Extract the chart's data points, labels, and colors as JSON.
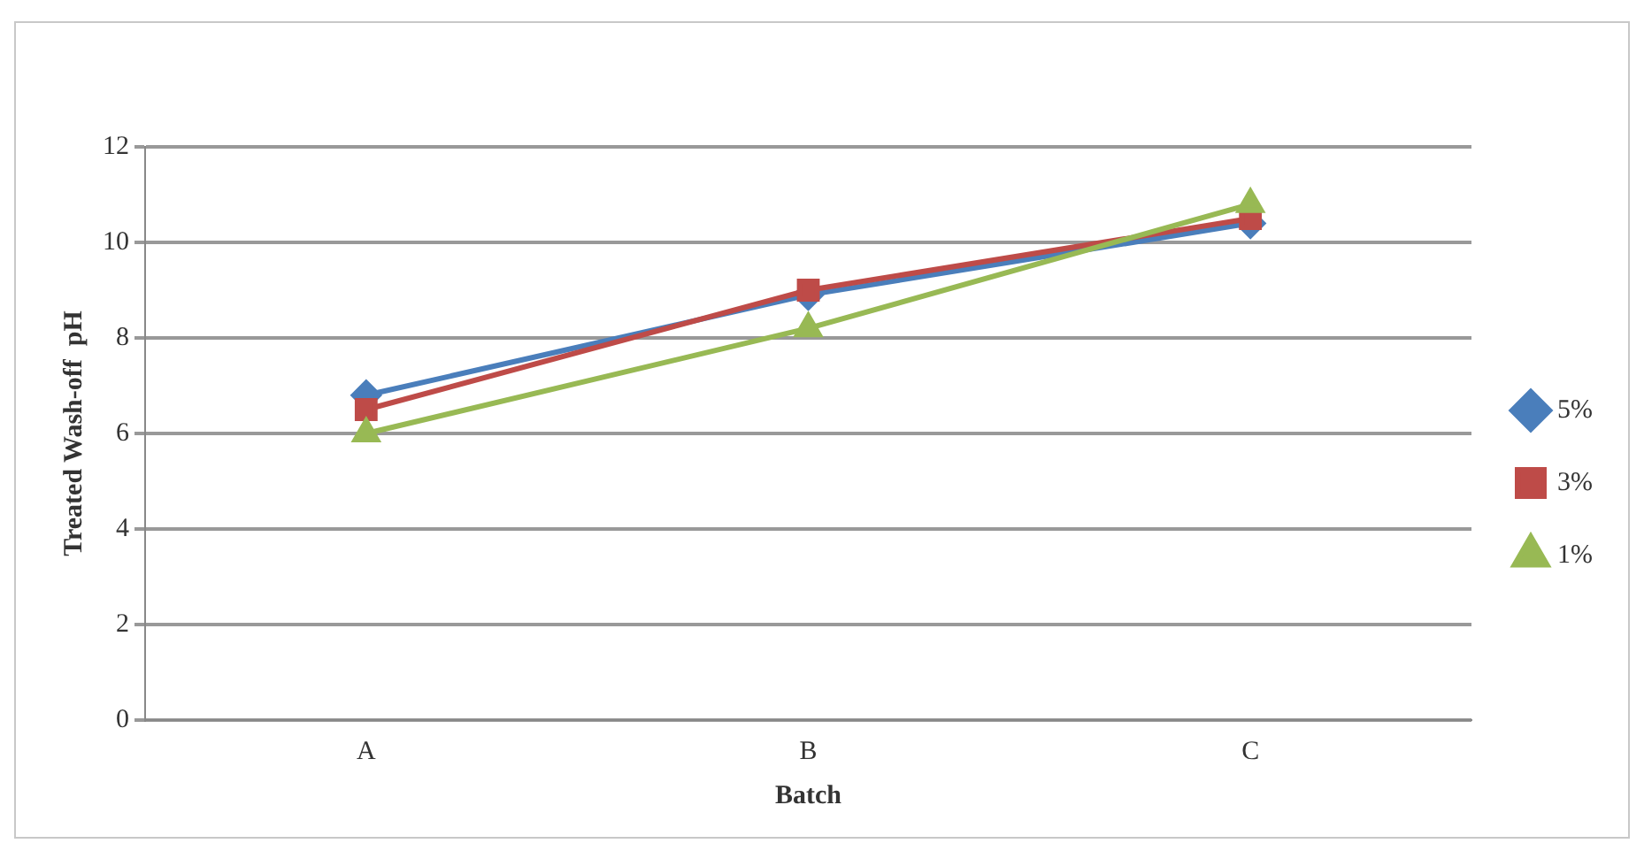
{
  "chart_data": {
    "type": "line",
    "xlabel": "Batch",
    "ylabel": "Treated Wash-off  pH",
    "categories": [
      "A",
      "B",
      "C"
    ],
    "series": [
      {
        "name": "5%",
        "color": "#4a7ebb",
        "marker": "diamond",
        "values": [
          6.8,
          8.9,
          10.4
        ]
      },
      {
        "name": "3%",
        "color": "#be4b48",
        "marker": "square",
        "values": [
          6.5,
          9.0,
          10.5
        ]
      },
      {
        "name": "1%",
        "color": "#98b954",
        "marker": "triangle",
        "values": [
          6.0,
          8.2,
          10.8
        ]
      }
    ],
    "ylim": [
      0,
      12
    ],
    "yticks": [
      0,
      2,
      4,
      6,
      8,
      10,
      12
    ],
    "grid": "y",
    "legend": "right"
  }
}
